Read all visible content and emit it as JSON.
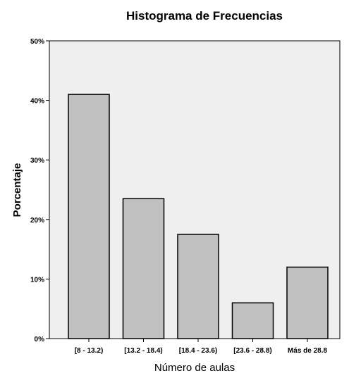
{
  "chart_data": {
    "type": "bar",
    "title": "Histograma de Frecuencias",
    "xlabel": "Número de aulas",
    "ylabel": "Porcentaje",
    "categories": [
      "[8 - 13.2)",
      "[13.2 - 18.4)",
      "[18.4 - 23.6)",
      "[23.6 - 28.8)",
      "Más de 28.8"
    ],
    "values": [
      41,
      23.5,
      17.5,
      6,
      12
    ],
    "ylim": [
      0,
      50
    ],
    "yticks": [
      0,
      10,
      20,
      30,
      40,
      50
    ],
    "ytick_labels": [
      "0%",
      "10%",
      "20%",
      "30%",
      "40%",
      "50%"
    ],
    "grid": false,
    "colors": {
      "plot_background": "#efefef",
      "bar_fill": "#c0c0c0",
      "bar_stroke": "#000000"
    }
  }
}
